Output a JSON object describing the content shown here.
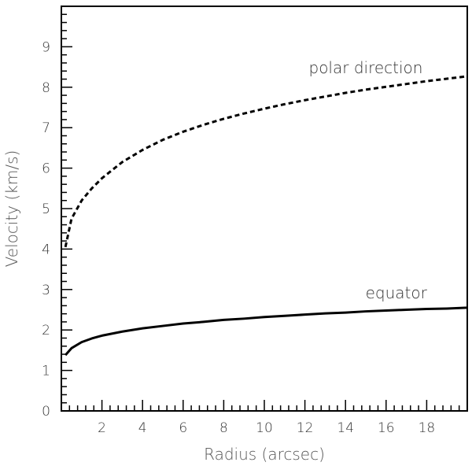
{
  "chart_data": {
    "type": "line",
    "xlabel": "Radius (arcsec)",
    "ylabel": "Velocity (km/s)",
    "xlim": [
      0,
      20
    ],
    "ylim": [
      0,
      10
    ],
    "x_ticks": [
      2,
      4,
      6,
      8,
      10,
      12,
      14,
      16,
      18
    ],
    "y_ticks": [
      0,
      1,
      2,
      3,
      4,
      5,
      6,
      7,
      8,
      9
    ],
    "grid": false,
    "series": [
      {
        "name": "polar direction",
        "style": "dashed",
        "color": "#000000",
        "x": [
          0.2,
          0.5,
          1,
          1.5,
          2,
          3,
          4,
          5,
          6,
          7,
          8,
          9,
          10,
          11,
          12,
          13,
          14,
          15,
          16,
          17,
          18,
          19,
          20
        ],
        "y": [
          4.05,
          4.75,
          5.2,
          5.5,
          5.75,
          6.15,
          6.45,
          6.7,
          6.9,
          7.07,
          7.22,
          7.35,
          7.47,
          7.58,
          7.68,
          7.77,
          7.86,
          7.94,
          8.01,
          8.08,
          8.15,
          8.21,
          8.27
        ]
      },
      {
        "name": "equator",
        "style": "solid",
        "color": "#000000",
        "x": [
          0.2,
          0.5,
          1,
          1.5,
          2,
          3,
          4,
          5,
          6,
          7,
          8,
          9,
          10,
          11,
          12,
          13,
          14,
          15,
          16,
          17,
          18,
          19,
          20
        ],
        "y": [
          1.38,
          1.55,
          1.7,
          1.79,
          1.86,
          1.96,
          2.04,
          2.1,
          2.16,
          2.2,
          2.25,
          2.28,
          2.32,
          2.35,
          2.38,
          2.41,
          2.43,
          2.46,
          2.48,
          2.5,
          2.52,
          2.53,
          2.55
        ]
      }
    ],
    "annotations": [
      {
        "text": "polar direction",
        "x": 15,
        "y": 8.35
      },
      {
        "text": "equator",
        "x": 16.5,
        "y": 2.78
      }
    ]
  }
}
